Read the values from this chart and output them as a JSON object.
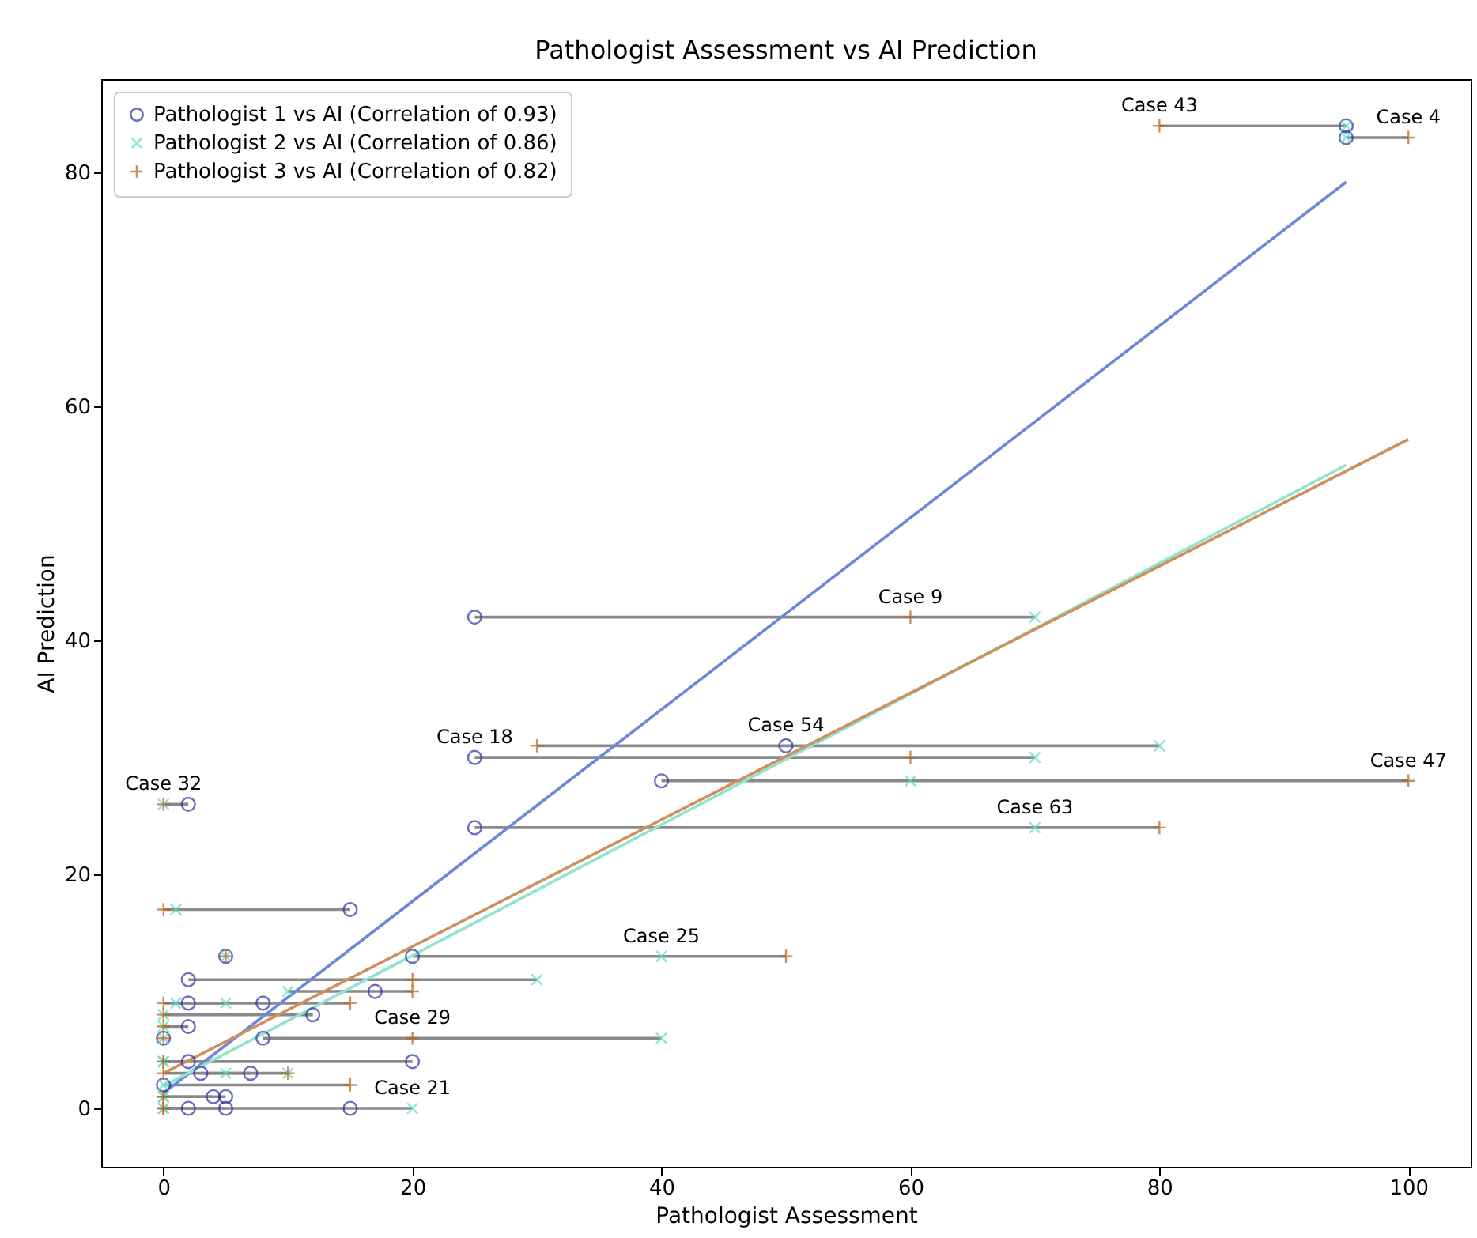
{
  "chart_data": {
    "type": "scatter",
    "title": "Pathologist Assessment vs AI Prediction",
    "xlabel": "Pathologist Assessment",
    "ylabel": "AI Prediction",
    "xlim": [
      -5,
      105
    ],
    "ylim": [
      -5,
      88
    ],
    "xticks": [
      0,
      20,
      40,
      60,
      80,
      100
    ],
    "yticks": [
      0,
      20,
      40,
      60,
      80
    ],
    "grid": false,
    "legend": "top left",
    "series": [
      {
        "name": "Pathologist 1 vs AI (Correlation of 0.93)",
        "type": "scatter",
        "marker": "circle",
        "color": "#2e2ea6",
        "x": [
          95,
          95,
          25,
          50,
          25,
          40,
          2,
          25,
          15,
          5,
          20,
          2,
          17,
          2,
          8,
          12,
          2,
          8,
          0,
          2,
          20,
          3,
          7,
          0,
          4,
          5,
          15,
          2,
          5
        ],
        "values": [
          84,
          83,
          42,
          31,
          30,
          28,
          26,
          24,
          17,
          13,
          13,
          11,
          10,
          9,
          9,
          8,
          7,
          6,
          6,
          4,
          4,
          3,
          3,
          2,
          1,
          1,
          0,
          0,
          0
        ]
      },
      {
        "name": "Pathologist 2 vs AI (Correlation of 0.86)",
        "type": "scatter",
        "marker": "x",
        "color": "#5fdcc8",
        "x": [
          95,
          95,
          70,
          80,
          70,
          60,
          0,
          70,
          1,
          5,
          40,
          30,
          10,
          5,
          1,
          0,
          0,
          40,
          0,
          0,
          0,
          10,
          5,
          0,
          0,
          0,
          20,
          0,
          0
        ],
        "values": [
          84,
          83,
          42,
          31,
          30,
          28,
          26,
          24,
          17,
          13,
          13,
          11,
          10,
          9,
          9,
          8,
          7,
          6,
          6,
          4,
          4,
          3,
          3,
          2,
          1,
          1,
          0,
          0,
          0
        ]
      },
      {
        "name": "Pathologist 3 vs AI (Correlation of 0.82)",
        "type": "scatter",
        "marker": "cross",
        "color": "#b8621f",
        "x": [
          80,
          100,
          60,
          30,
          60,
          100,
          0,
          80,
          0,
          5,
          50,
          20,
          20,
          0,
          15,
          0,
          0,
          20,
          0,
          0,
          0,
          10,
          0,
          15,
          0,
          0,
          0,
          0,
          0
        ],
        "values": [
          84,
          83,
          42,
          31,
          30,
          28,
          26,
          24,
          17,
          13,
          13,
          11,
          10,
          9,
          9,
          8,
          7,
          6,
          6,
          4,
          4,
          3,
          3,
          2,
          1,
          1,
          0,
          0,
          0
        ]
      },
      {
        "type": "line",
        "color": "#8a8a8a",
        "x": [
          80,
          95
        ],
        "values": [
          84,
          84
        ]
      },
      {
        "type": "line",
        "color": "#8a8a8a",
        "x": [
          95,
          100
        ],
        "values": [
          83,
          83
        ]
      },
      {
        "type": "line",
        "color": "#8a8a8a",
        "x": [
          25,
          70
        ],
        "values": [
          42,
          42
        ]
      },
      {
        "type": "line",
        "color": "#8a8a8a",
        "x": [
          30,
          80
        ],
        "values": [
          31,
          31
        ]
      },
      {
        "type": "line",
        "color": "#8a8a8a",
        "x": [
          25,
          70
        ],
        "values": [
          30,
          30
        ]
      },
      {
        "type": "line",
        "color": "#8a8a8a",
        "x": [
          40,
          100
        ],
        "values": [
          28,
          28
        ]
      },
      {
        "type": "line",
        "color": "#8a8a8a",
        "x": [
          0,
          2
        ],
        "values": [
          26,
          26
        ]
      },
      {
        "type": "line",
        "color": "#8a8a8a",
        "x": [
          25,
          80
        ],
        "values": [
          24,
          24
        ]
      },
      {
        "type": "line",
        "color": "#8a8a8a",
        "x": [
          0,
          15
        ],
        "values": [
          17,
          17
        ]
      },
      {
        "type": "line",
        "color": "#8a8a8a",
        "x": [
          20,
          50
        ],
        "values": [
          13,
          13
        ]
      },
      {
        "type": "line",
        "color": "#8a8a8a",
        "x": [
          2,
          30
        ],
        "values": [
          11,
          11
        ]
      },
      {
        "type": "line",
        "color": "#8a8a8a",
        "x": [
          10,
          20
        ],
        "values": [
          10,
          10
        ]
      },
      {
        "type": "line",
        "color": "#8a8a8a",
        "x": [
          0,
          5
        ],
        "values": [
          9,
          9
        ]
      },
      {
        "type": "line",
        "color": "#8a8a8a",
        "x": [
          1,
          15
        ],
        "values": [
          9,
          9
        ]
      },
      {
        "type": "line",
        "color": "#8a8a8a",
        "x": [
          0,
          12
        ],
        "values": [
          8,
          8
        ]
      },
      {
        "type": "line",
        "color": "#8a8a8a",
        "x": [
          0,
          2
        ],
        "values": [
          7,
          7
        ]
      },
      {
        "type": "line",
        "color": "#8a8a8a",
        "x": [
          8,
          40
        ],
        "values": [
          6,
          6
        ]
      },
      {
        "type": "line",
        "color": "#8a8a8a",
        "x": [
          0,
          2
        ],
        "values": [
          4,
          4
        ]
      },
      {
        "type": "line",
        "color": "#8a8a8a",
        "x": [
          0,
          20
        ],
        "values": [
          4,
          4
        ]
      },
      {
        "type": "line",
        "color": "#8a8a8a",
        "x": [
          3,
          10
        ],
        "values": [
          3,
          3
        ]
      },
      {
        "type": "line",
        "color": "#8a8a8a",
        "x": [
          0,
          7
        ],
        "values": [
          3,
          3
        ]
      },
      {
        "type": "line",
        "color": "#8a8a8a",
        "x": [
          0,
          15
        ],
        "values": [
          2,
          2
        ]
      },
      {
        "type": "line",
        "color": "#8a8a8a",
        "x": [
          0,
          4
        ],
        "values": [
          1,
          1
        ]
      },
      {
        "type": "line",
        "color": "#8a8a8a",
        "x": [
          0,
          5
        ],
        "values": [
          1,
          1
        ]
      },
      {
        "type": "line",
        "color": "#8a8a8a",
        "x": [
          0,
          20
        ],
        "values": [
          0,
          0
        ]
      },
      {
        "type": "line",
        "color": "#8a8a8a",
        "x": [
          0,
          2
        ],
        "values": [
          0,
          0
        ]
      },
      {
        "type": "line",
        "color": "#8a8a8a",
        "x": [
          0,
          5
        ],
        "values": [
          0,
          0
        ]
      },
      {
        "type": "line",
        "color": "#6c87d8",
        "x": [
          0,
          95
        ],
        "values": [
          1.3,
          79.2
        ]
      },
      {
        "type": "line",
        "color": "#8fe3cf",
        "x": [
          0,
          95
        ],
        "values": [
          1.9,
          55
        ]
      },
      {
        "type": "line",
        "color": "#d0905e",
        "x": [
          0,
          100
        ],
        "values": [
          3,
          57.2
        ]
      }
    ],
    "annotations": [
      {
        "text": "Case 43",
        "x": 80,
        "y": 84
      },
      {
        "text": "Case 4",
        "x": 100,
        "y": 83
      },
      {
        "text": "Case 9",
        "x": 60,
        "y": 42
      },
      {
        "text": "Case 54",
        "x": 50,
        "y": 31
      },
      {
        "text": "Case 18",
        "x": 25,
        "y": 30
      },
      {
        "text": "Case 47",
        "x": 100,
        "y": 28
      },
      {
        "text": "Case 32",
        "x": 0,
        "y": 26
      },
      {
        "text": "Case 63",
        "x": 70,
        "y": 24
      },
      {
        "text": "Case 25",
        "x": 40,
        "y": 13
      },
      {
        "text": "Case 29",
        "x": 20,
        "y": 6
      },
      {
        "text": "Case 21",
        "x": 20,
        "y": 0
      }
    ]
  }
}
